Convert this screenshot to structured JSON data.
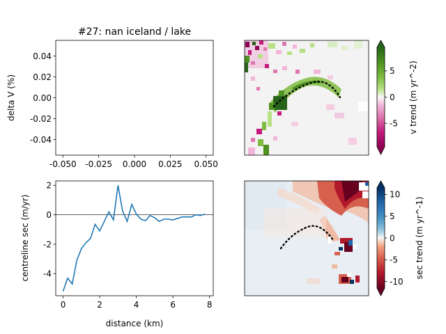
{
  "figure_title": "#27: nan iceland / lake",
  "chart_data": [
    {
      "type": "line",
      "title": "#27: nan iceland / lake",
      "xlabel": "",
      "ylabel": "delta V (%)",
      "xlim": [
        -0.055,
        0.055
      ],
      "ylim": [
        -0.055,
        0.055
      ],
      "xticks": [
        "-0.050",
        "-0.025",
        "0.000",
        "0.025",
        "0.050"
      ],
      "xtick_values": [
        -0.05,
        -0.025,
        0.0,
        0.025,
        0.05
      ],
      "yticks": [
        "0.04",
        "0.02",
        "0.00",
        "-0.02",
        "-0.04"
      ],
      "ytick_values": [
        0.04,
        0.02,
        0.0,
        -0.02,
        -0.04
      ],
      "series": []
    },
    {
      "type": "heatmap",
      "colormap": "PiYG",
      "colorbar_label": "v trend (m yr^-2)",
      "colorbar_ticks": [
        "5",
        "0",
        "-5"
      ],
      "colorbar_tick_values": [
        5,
        0,
        -5
      ],
      "colorbar_range": [
        -9.5,
        9.5
      ],
      "overlay": "dotted centreline (black)"
    },
    {
      "type": "line",
      "title": "",
      "xlabel": "distance (km)",
      "ylabel": "centreline sec (m/yr)",
      "xlim": [
        -0.4,
        8.2
      ],
      "ylim": [
        -5.5,
        2.3
      ],
      "xticks": [
        "0",
        "2",
        "4",
        "6",
        "8"
      ],
      "xtick_values": [
        0,
        2,
        4,
        6,
        8
      ],
      "yticks": [
        "2",
        "0",
        "-2",
        "-4"
      ],
      "ytick_values": [
        2,
        0,
        -2,
        -4
      ],
      "reference_line_y": 0,
      "series": [
        {
          "color": "#1f77b4",
          "x": [
            0,
            0.25,
            0.5,
            0.75,
            1.0,
            1.25,
            1.5,
            1.75,
            2.0,
            2.25,
            2.5,
            2.75,
            3.0,
            3.25,
            3.5,
            3.75,
            4.0,
            4.25,
            4.5,
            4.75,
            5.0,
            5.25,
            5.5,
            5.75,
            6.0,
            6.25,
            6.5,
            6.75,
            7.0,
            7.25,
            7.5,
            7.75
          ],
          "y": [
            -5.2,
            -4.3,
            -4.7,
            -3.1,
            -2.3,
            -1.9,
            -1.6,
            -0.65,
            -1.1,
            -0.45,
            0.2,
            -0.35,
            2.0,
            0.25,
            -0.45,
            0.7,
            0.05,
            -0.3,
            -0.4,
            -0.05,
            -0.2,
            -0.45,
            -0.3,
            -0.3,
            -0.35,
            -0.25,
            -0.15,
            -0.15,
            -0.15,
            0.0,
            -0.05,
            0.05
          ]
        }
      ]
    },
    {
      "type": "heatmap",
      "colormap": "RdBu",
      "colorbar_label": "sec trend (m yr^-1)",
      "colorbar_ticks": [
        "10",
        "5",
        "0",
        "-5",
        "-10"
      ],
      "colorbar_tick_values": [
        10,
        5,
        0,
        -5,
        -10
      ],
      "colorbar_range": [
        -11.5,
        11.5
      ],
      "overlay": "dotted centreline (black)"
    }
  ]
}
